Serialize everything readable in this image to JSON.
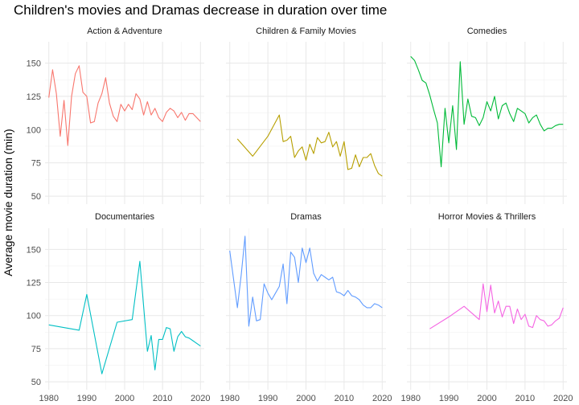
{
  "chart_data": {
    "type": "line",
    "title": "Children's movies and Dramas decrease in duration over time",
    "xlabel": "",
    "ylabel": "Average movie duration (min)",
    "xlim": [
      1979,
      2021
    ],
    "ylim": [
      44,
      166
    ],
    "x_ticks": [
      1980,
      1990,
      2000,
      2010,
      2020
    ],
    "y_ticks": [
      50,
      75,
      100,
      125,
      150
    ],
    "grid": true,
    "legend": "none",
    "facets": [
      {
        "name": "Action & Adventure",
        "color": "#F8766D",
        "x": [
          1980,
          1981,
          1982,
          1983,
          1984,
          1985,
          1986,
          1987,
          1988,
          1989,
          1990,
          1991,
          1992,
          1993,
          1994,
          1995,
          1996,
          1997,
          1998,
          1999,
          2000,
          2001,
          2002,
          2003,
          2004,
          2005,
          2006,
          2007,
          2008,
          2009,
          2010,
          2011,
          2012,
          2013,
          2014,
          2015,
          2016,
          2017,
          2018,
          2019,
          2020
        ],
        "y": [
          124,
          145,
          127,
          95,
          122,
          88,
          125,
          142,
          148,
          128,
          125,
          105,
          106,
          120,
          127,
          139,
          120,
          110,
          106,
          119,
          114,
          119,
          115,
          127,
          123,
          111,
          121,
          111,
          116,
          109,
          106,
          113,
          116,
          114,
          109,
          113,
          107,
          112,
          112,
          109,
          106
        ]
      },
      {
        "name": "Children & Family Movies",
        "color": "#B79F00",
        "x": [
          1982,
          1986,
          1990,
          1993,
          1994,
          1995,
          1996,
          1997,
          1998,
          1999,
          2000,
          2001,
          2002,
          2003,
          2004,
          2005,
          2006,
          2007,
          2008,
          2009,
          2010,
          2011,
          2012,
          2013,
          2014,
          2015,
          2016,
          2017,
          2018,
          2019,
          2020
        ],
        "y": [
          93,
          80,
          95,
          111,
          91,
          92,
          95,
          79,
          84,
          87,
          77,
          89,
          82,
          94,
          90,
          91,
          98,
          87,
          91,
          80,
          91,
          70,
          71,
          81,
          72,
          79,
          79,
          82,
          73,
          67,
          65
        ]
      },
      {
        "name": "Comedies",
        "color": "#00BA38",
        "x": [
          1980,
          1981,
          1982,
          1983,
          1984,
          1985,
          1986,
          1987,
          1988,
          1989,
          1990,
          1991,
          1992,
          1993,
          1994,
          1995,
          1996,
          1997,
          1998,
          1999,
          2000,
          2001,
          2002,
          2003,
          2004,
          2005,
          2006,
          2007,
          2008,
          2009,
          2010,
          2011,
          2012,
          2013,
          2014,
          2015,
          2016,
          2017,
          2018,
          2019,
          2020
        ],
        "y": [
          155,
          152,
          145,
          137,
          135,
          126,
          115,
          105,
          72,
          116,
          90,
          118,
          85,
          151,
          104,
          123,
          110,
          109,
          103,
          109,
          121,
          114,
          125,
          108,
          118,
          120,
          112,
          106,
          116,
          114,
          112,
          105,
          109,
          111,
          104,
          99,
          101,
          101,
          103,
          104,
          104
        ]
      },
      {
        "name": "Documentaries",
        "color": "#00BFC4",
        "x": [
          1980,
          1988,
          1990,
          1994,
          1998,
          2002,
          2004,
          2006,
          2007,
          2008,
          2009,
          2010,
          2011,
          2012,
          2013,
          2014,
          2015,
          2016,
          2017,
          2018,
          2019,
          2020
        ],
        "y": [
          93,
          89,
          116,
          56,
          95,
          97,
          141,
          73,
          85,
          59,
          82,
          82,
          91,
          90,
          73,
          84,
          88,
          84,
          83,
          81,
          79,
          77
        ]
      },
      {
        "name": "Dramas",
        "color": "#619CFF",
        "x": [
          1980,
          1982,
          1983,
          1984,
          1985,
          1986,
          1987,
          1988,
          1989,
          1990,
          1991,
          1992,
          1993,
          1994,
          1995,
          1996,
          1997,
          1998,
          1999,
          2000,
          2001,
          2002,
          2003,
          2004,
          2005,
          2006,
          2007,
          2008,
          2009,
          2010,
          2011,
          2012,
          2013,
          2014,
          2015,
          2016,
          2017,
          2018,
          2019,
          2020
        ],
        "y": [
          149,
          106,
          131,
          160,
          92,
          114,
          96,
          97,
          124,
          117,
          112,
          117,
          122,
          139,
          109,
          148,
          144,
          125,
          151,
          140,
          151,
          132,
          126,
          131,
          129,
          127,
          129,
          118,
          117,
          115,
          119,
          115,
          114,
          112,
          108,
          106,
          106,
          109,
          108,
          106
        ]
      },
      {
        "name": "Horror Movies & Thrillers",
        "color": "#F564E3",
        "x": [
          1985,
          1990,
          1994,
          1996,
          1998,
          1999,
          2000,
          2001,
          2002,
          2003,
          2004,
          2005,
          2006,
          2007,
          2008,
          2009,
          2010,
          2011,
          2012,
          2013,
          2014,
          2015,
          2016,
          2017,
          2018,
          2019,
          2020
        ],
        "y": [
          90,
          99,
          107,
          102,
          97,
          124,
          103,
          123,
          102,
          111,
          99,
          107,
          107,
          94,
          105,
          97,
          101,
          92,
          91,
          100,
          97,
          96,
          92,
          93,
          96,
          98,
          106
        ]
      }
    ]
  }
}
